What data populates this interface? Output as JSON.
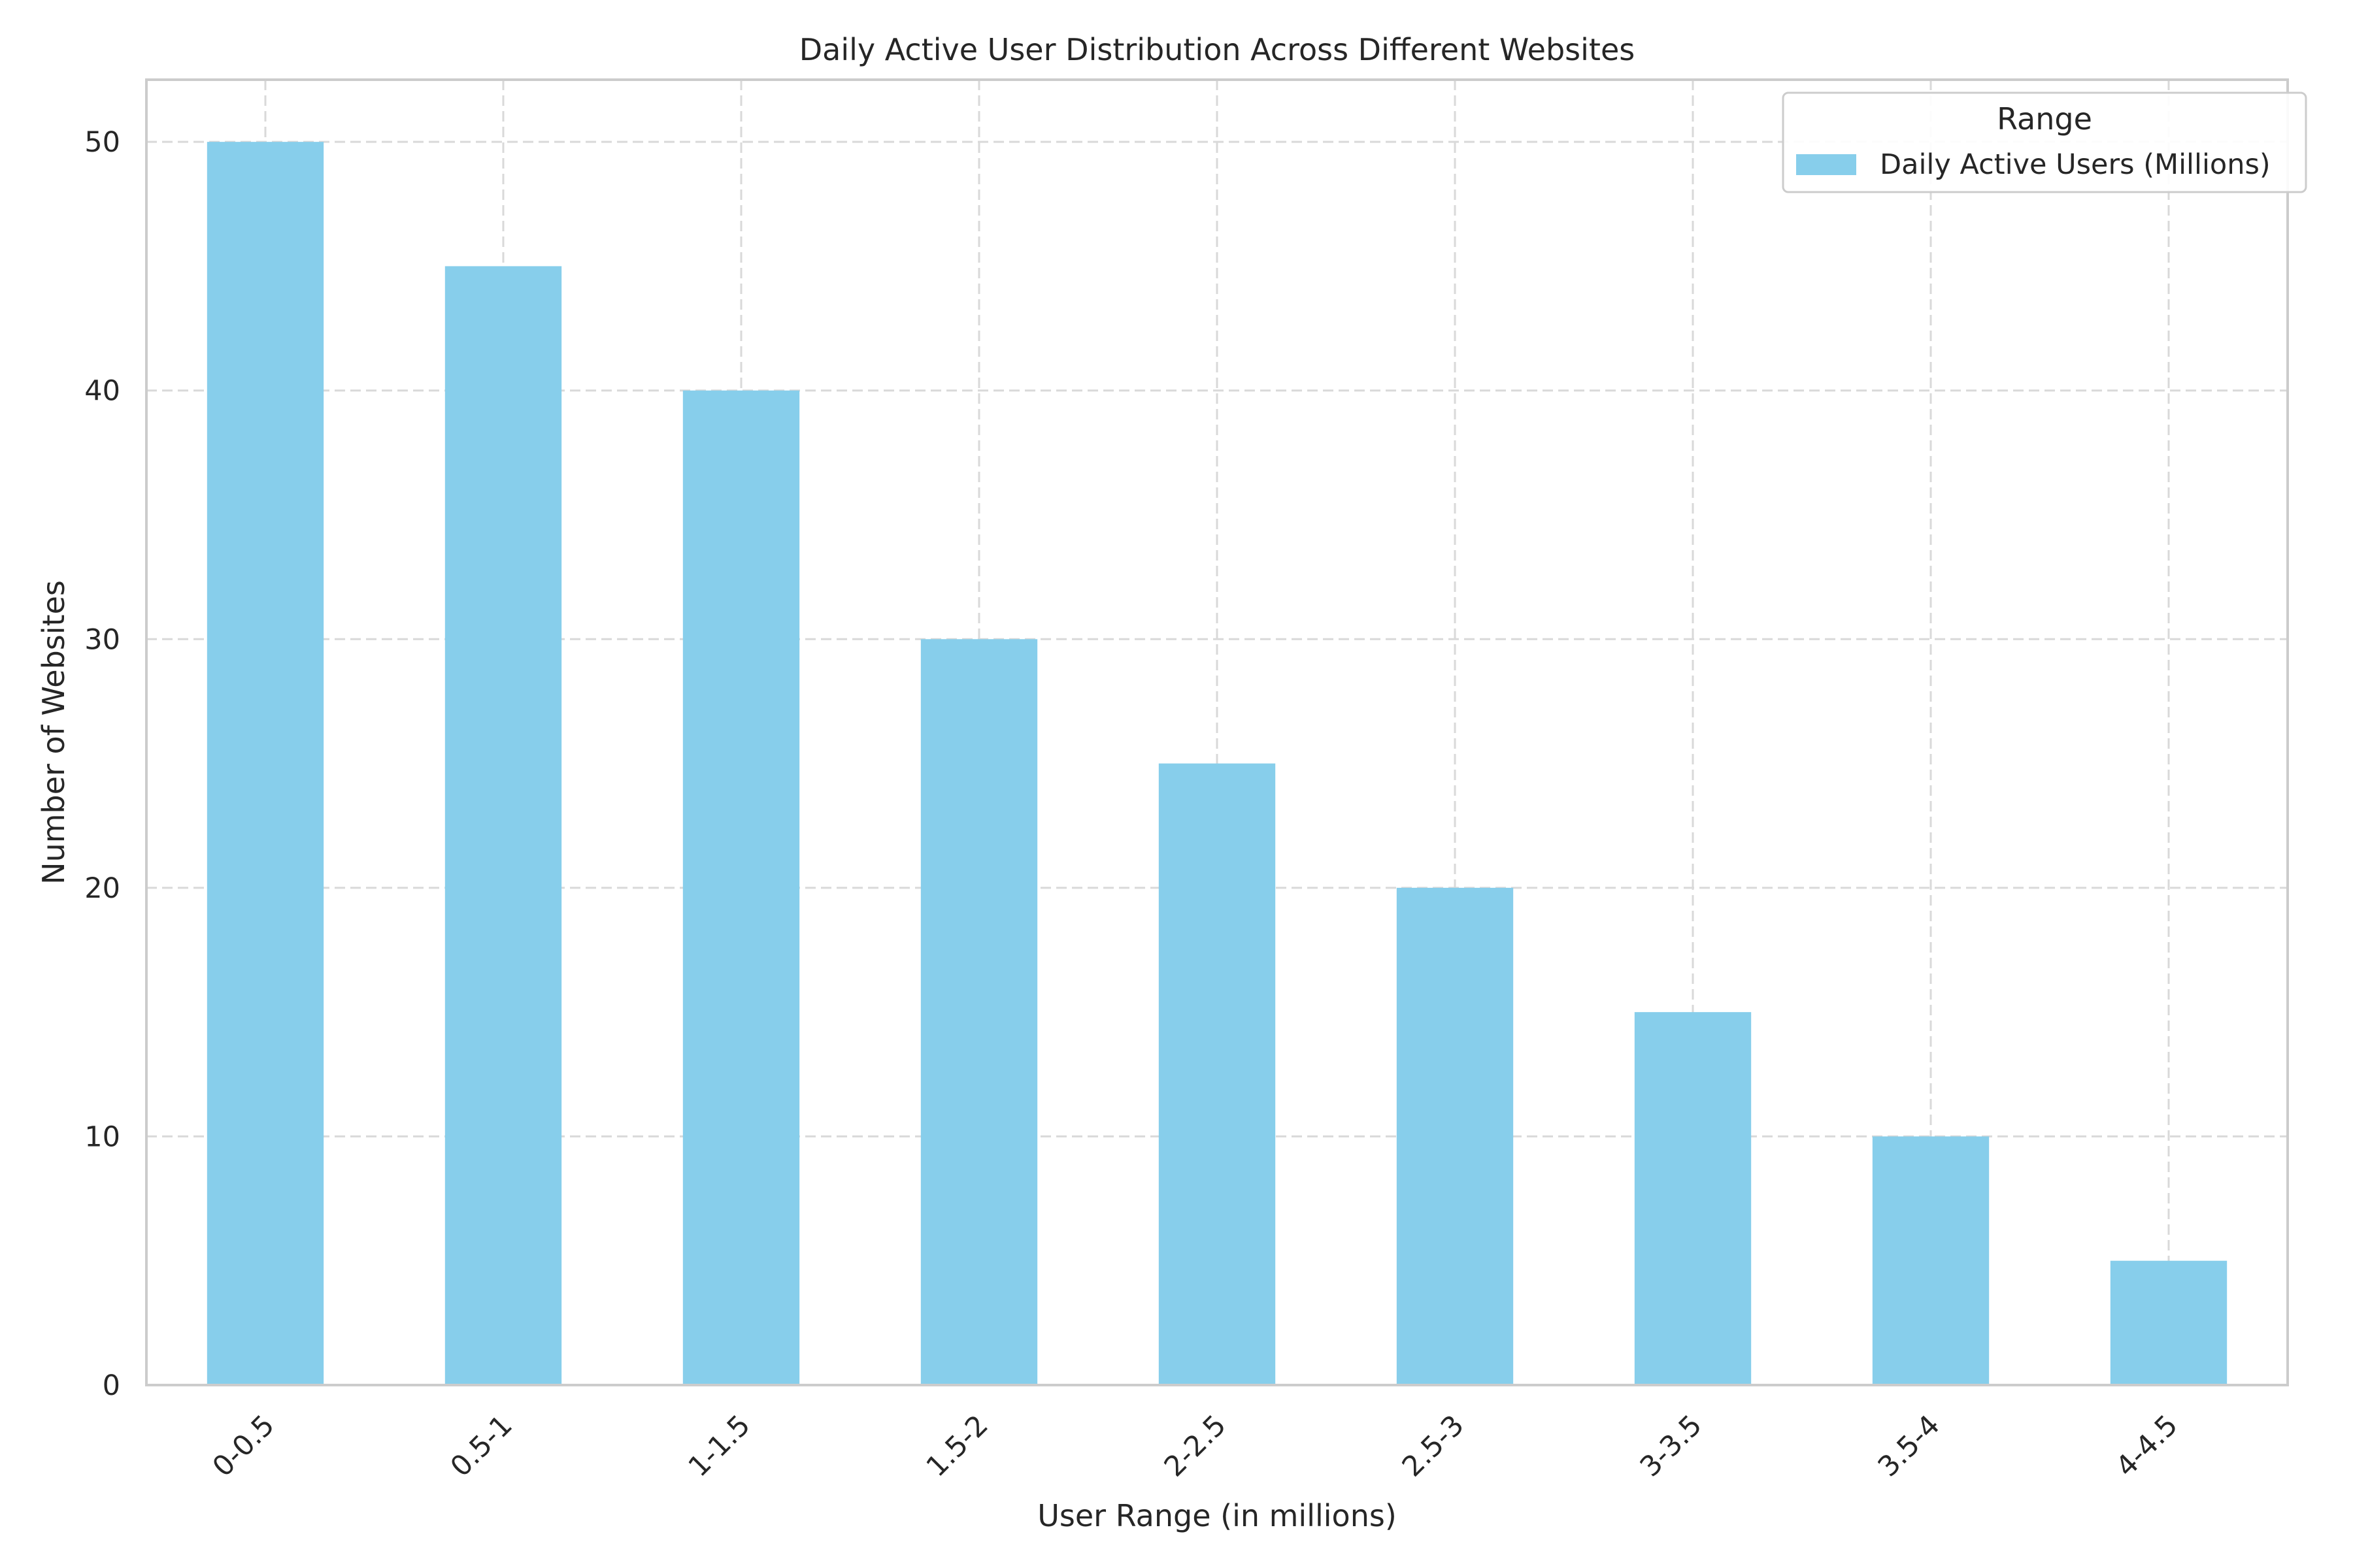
{
  "chart_data": {
    "type": "bar",
    "title": "Daily Active User Distribution Across Different Websites",
    "xlabel": "User Range (in millions)",
    "ylabel": "Number of Websites",
    "categories": [
      "0-0.5",
      "0.5-1",
      "1-1.5",
      "1.5-2",
      "2-2.5",
      "2.5-3",
      "3-3.5",
      "3.5-4",
      "4-4.5"
    ],
    "series": [
      {
        "name": "Daily Active Users (Millions)",
        "values": [
          50,
          45,
          40,
          30,
          25,
          20,
          15,
          10,
          5
        ],
        "color": "#87ceeb"
      }
    ],
    "ylim": [
      0,
      52.5
    ],
    "yticks": [
      0,
      10,
      20,
      30,
      40,
      50
    ],
    "grid": true,
    "legend": {
      "title": "Range",
      "position": "top-right"
    }
  }
}
